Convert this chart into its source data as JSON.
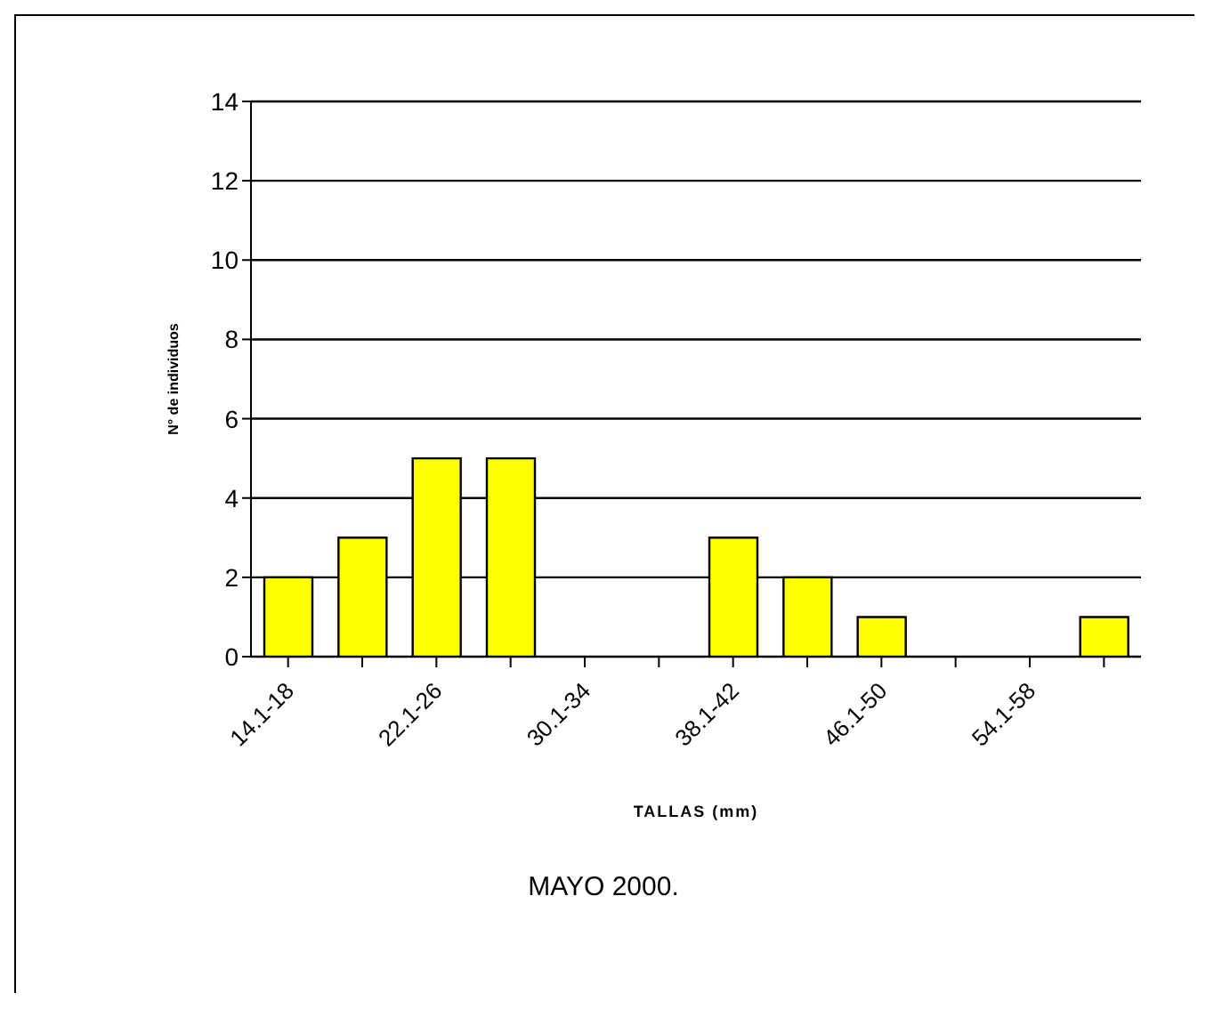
{
  "chart_data": {
    "type": "bar",
    "title": "MAYO 2000.",
    "xlabel": "TALLAS (mm)",
    "ylabel": "N° de individuos",
    "categories": [
      "14.1-18",
      null,
      "22.1-26",
      null,
      "30.1-34",
      null,
      "38.1-42",
      null,
      "46.1-50",
      null,
      "54.1-58",
      null
    ],
    "values": [
      2,
      3,
      5,
      5,
      0,
      0,
      3,
      2,
      1,
      0,
      0,
      1
    ],
    "color": "#ffff00",
    "ylim": [
      0,
      14
    ],
    "yticks": [
      0,
      2,
      4,
      6,
      8,
      10,
      12,
      14
    ],
    "grid": "y"
  }
}
